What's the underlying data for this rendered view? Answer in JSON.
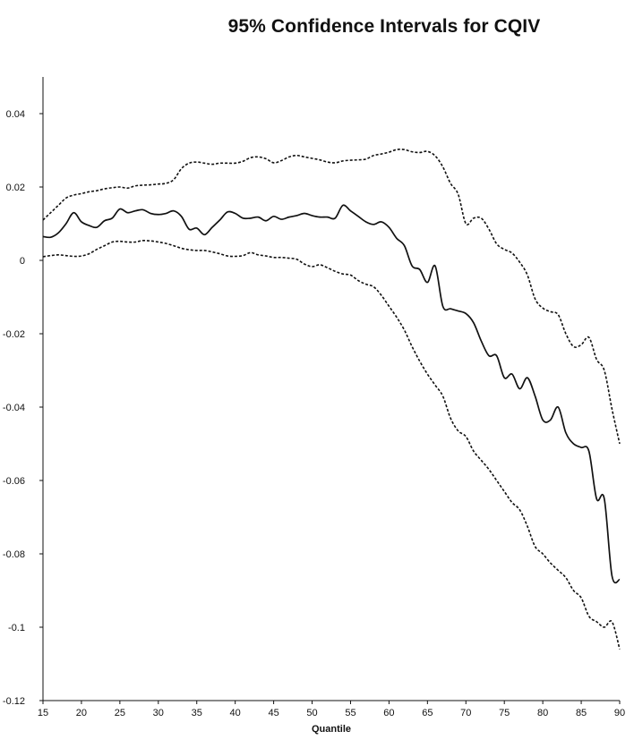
{
  "chart_data": {
    "type": "line",
    "title": "95% Confidence Intervals for CQIV",
    "xlabel": "Quantile",
    "ylabel": "",
    "xlim": [
      15,
      90
    ],
    "ylim": [
      -0.12,
      0.05
    ],
    "x_ticks": [
      15,
      20,
      25,
      30,
      35,
      40,
      45,
      50,
      55,
      60,
      65,
      70,
      75,
      80,
      85,
      90
    ],
    "y_ticks": [
      0.04,
      0.02,
      0,
      -0.02,
      -0.04,
      -0.06,
      -0.08,
      -0.1,
      -0.12
    ],
    "y_tick_labels": [
      "0.04",
      "0.02",
      "0",
      "-0.02",
      "-0.04",
      "-0.06",
      "-0.08",
      "-0.1",
      "-0.12"
    ],
    "grid": false,
    "legend": "none",
    "x": [
      15,
      16,
      17,
      18,
      19,
      20,
      21,
      22,
      23,
      24,
      25,
      26,
      27,
      28,
      29,
      30,
      31,
      32,
      33,
      34,
      35,
      36,
      37,
      38,
      39,
      40,
      41,
      42,
      43,
      44,
      45,
      46,
      47,
      48,
      49,
      50,
      51,
      52,
      53,
      54,
      55,
      56,
      57,
      58,
      59,
      60,
      61,
      62,
      63,
      64,
      65,
      66,
      67,
      68,
      69,
      70,
      71,
      72,
      73,
      74,
      75,
      76,
      77,
      78,
      79,
      80,
      81,
      82,
      83,
      84,
      85,
      86,
      87,
      88,
      89,
      90
    ],
    "series": [
      {
        "style": "dashed",
        "color": "#111111",
        "values": [
          0.011,
          0.013,
          0.015,
          0.017,
          0.0178,
          0.0182,
          0.0187,
          0.019,
          0.0195,
          0.0198,
          0.02,
          0.0197,
          0.0203,
          0.0205,
          0.0206,
          0.0208,
          0.021,
          0.022,
          0.025,
          0.0265,
          0.0268,
          0.0265,
          0.0262,
          0.0265,
          0.0265,
          0.0265,
          0.027,
          0.028,
          0.0282,
          0.0277,
          0.0266,
          0.0272,
          0.0282,
          0.0286,
          0.0282,
          0.0278,
          0.0274,
          0.0268,
          0.0266,
          0.0271,
          0.0273,
          0.0274,
          0.0276,
          0.0286,
          0.029,
          0.0295,
          0.0302,
          0.0302,
          0.0296,
          0.0294,
          0.0297,
          0.0285,
          0.0255,
          0.021,
          0.018,
          0.01,
          0.0115,
          0.0115,
          0.0085,
          0.0045,
          0.003,
          0.002,
          -0.0005,
          -0.004,
          -0.0105,
          -0.013,
          -0.014,
          -0.0148,
          -0.02,
          -0.0235,
          -0.023,
          -0.021,
          -0.027,
          -0.03,
          -0.0405,
          -0.05
        ]
      },
      {
        "style": "solid",
        "color": "#111111",
        "values": [
          0.0065,
          0.0063,
          0.0075,
          0.01,
          0.013,
          0.0105,
          0.0095,
          0.009,
          0.0108,
          0.0115,
          0.014,
          0.013,
          0.0135,
          0.0138,
          0.0128,
          0.0125,
          0.0128,
          0.0135,
          0.012,
          0.0085,
          0.0088,
          0.007,
          0.009,
          0.011,
          0.0132,
          0.0128,
          0.0115,
          0.0115,
          0.0118,
          0.0108,
          0.012,
          0.0112,
          0.0118,
          0.0122,
          0.0128,
          0.0122,
          0.0118,
          0.0118,
          0.0115,
          0.015,
          0.0135,
          0.012,
          0.0105,
          0.0098,
          0.0105,
          0.009,
          0.006,
          0.004,
          -0.0015,
          -0.0025,
          -0.006,
          -0.0015,
          -0.0125,
          -0.0132,
          -0.0138,
          -0.0145,
          -0.017,
          -0.022,
          -0.026,
          -0.026,
          -0.032,
          -0.031,
          -0.035,
          -0.032,
          -0.037,
          -0.0435,
          -0.0435,
          -0.04,
          -0.047,
          -0.05,
          -0.051,
          -0.052,
          -0.065,
          -0.065,
          -0.086,
          -0.087
        ]
      },
      {
        "style": "dashed",
        "color": "#111111",
        "values": [
          0.001,
          0.0013,
          0.0015,
          0.0013,
          0.0011,
          0.0012,
          0.0018,
          0.003,
          0.004,
          0.005,
          0.0052,
          0.005,
          0.005,
          0.0054,
          0.0053,
          0.005,
          0.0046,
          0.004,
          0.0033,
          0.0029,
          0.0027,
          0.0027,
          0.0023,
          0.0018,
          0.0012,
          0.0011,
          0.0013,
          0.0021,
          0.0015,
          0.0012,
          0.0008,
          0.0008,
          0.0006,
          0.0003,
          -0.001,
          -0.0017,
          -0.0012,
          -0.002,
          -0.003,
          -0.0037,
          -0.004,
          -0.0055,
          -0.0065,
          -0.0072,
          -0.0095,
          -0.0125,
          -0.0155,
          -0.019,
          -0.0235,
          -0.0275,
          -0.031,
          -0.034,
          -0.037,
          -0.043,
          -0.0465,
          -0.048,
          -0.052,
          -0.0545,
          -0.057,
          -0.06,
          -0.063,
          -0.066,
          -0.068,
          -0.0725,
          -0.078,
          -0.08,
          -0.0825,
          -0.0845,
          -0.0865,
          -0.09,
          -0.092,
          -0.097,
          -0.0985,
          -0.1,
          -0.0985,
          -0.106
        ]
      }
    ]
  }
}
